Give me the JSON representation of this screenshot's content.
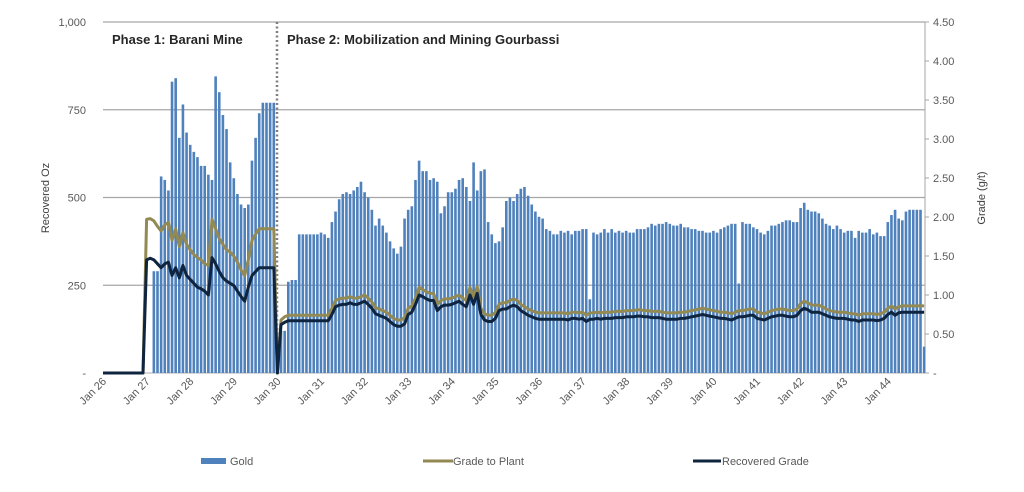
{
  "chart_data": {
    "type": "bar+line",
    "x_start": "Jan 26",
    "x_interval": "month",
    "x_tick_labels": [
      "Jan 26",
      "Jan 27",
      "Jan 28",
      "Jan 29",
      "Jan 30",
      "Jan 31",
      "Jan 32",
      "Jan 33",
      "Jan 34",
      "Jan 35",
      "Jan 36",
      "Jan 37",
      "Jan 38",
      "Jan 39",
      "Jan 40",
      "Jan 41",
      "Jan 42",
      "Jan 43",
      "Jan 44"
    ],
    "y_left": {
      "label": "Recovered  Oz",
      "range": [
        0,
        1000
      ],
      "ticks": [
        "-",
        "250",
        "500",
        "750",
        "1,000"
      ],
      "tick_values": [
        0,
        250,
        500,
        750,
        1000
      ]
    },
    "y_right": {
      "label": "Grade (g/t)",
      "range": [
        0,
        4.5
      ],
      "ticks": [
        "-",
        "0.50",
        "1.00",
        "1.50",
        "2.00",
        "2.50",
        "3.00",
        "3.50",
        "4.00",
        "4.50"
      ],
      "tick_values": [
        0,
        0.5,
        1,
        1.5,
        2,
        2.5,
        3,
        3.5,
        4,
        4.5
      ]
    },
    "grid": "horizontal (left axis)",
    "annotations": {
      "phase1": "Phase 1: Barani Mine",
      "phase2": "Phase 2: Mobilization and Mining Gourbassi",
      "divider_at": "Jan 30"
    },
    "legend": {
      "position": "bottom",
      "items": [
        "Gold",
        "Grade to Plant",
        "Recovered Grade"
      ]
    },
    "colors": {
      "gold": "#4f81bd",
      "grade_to_plant": "#938953",
      "recovered_grade": "#0f243e"
    },
    "series": [
      {
        "name": "Gold",
        "type": "bar",
        "axis": "left",
        "values": [
          0,
          0,
          0,
          0,
          0,
          0,
          0,
          0,
          0,
          0,
          0,
          0,
          0,
          0,
          290,
          290,
          560,
          550,
          520,
          830,
          840,
          670,
          765,
          685,
          650,
          630,
          615,
          590,
          590,
          565,
          550,
          845,
          800,
          735,
          695,
          600,
          555,
          510,
          480,
          470,
          480,
          605,
          670,
          740,
          770,
          770,
          770,
          770,
          0,
          120,
          120,
          260,
          265,
          265,
          395,
          395,
          395,
          395,
          395,
          395,
          400,
          395,
          385,
          430,
          460,
          495,
          510,
          515,
          510,
          520,
          530,
          545,
          515,
          500,
          465,
          420,
          440,
          420,
          400,
          375,
          355,
          340,
          360,
          440,
          465,
          475,
          550,
          605,
          575,
          575,
          550,
          555,
          545,
          455,
          475,
          515,
          515,
          525,
          550,
          555,
          530,
          490,
          600,
          520,
          575,
          580,
          430,
          395,
          370,
          375,
          415,
          490,
          500,
          490,
          510,
          525,
          530,
          505,
          480,
          460,
          445,
          440,
          410,
          405,
          395,
          395,
          405,
          400,
          405,
          395,
          405,
          405,
          410,
          410,
          210,
          400,
          395,
          400,
          410,
          400,
          410,
          400,
          405,
          400,
          405,
          400,
          400,
          410,
          410,
          410,
          415,
          425,
          420,
          425,
          425,
          430,
          425,
          420,
          420,
          425,
          415,
          415,
          410,
          410,
          405,
          405,
          400,
          400,
          405,
          400,
          410,
          415,
          420,
          425,
          425,
          255,
          430,
          425,
          425,
          415,
          410,
          400,
          395,
          405,
          420,
          420,
          425,
          430,
          435,
          435,
          430,
          430,
          470,
          485,
          465,
          460,
          460,
          455,
          440,
          425,
          420,
          410,
          420,
          410,
          400,
          405,
          405,
          385,
          405,
          400,
          400,
          410,
          395,
          400,
          390,
          390,
          430,
          450,
          465,
          440,
          435,
          460,
          465,
          465,
          465,
          465,
          75
        ]
      },
      {
        "name": "Grade to Plant",
        "type": "line",
        "axis": "right",
        "values": [
          0,
          0,
          0,
          0,
          0,
          0,
          0,
          0,
          0,
          0,
          0,
          0,
          1.97,
          1.98,
          1.95,
          1.88,
          1.82,
          1.9,
          1.93,
          1.7,
          1.85,
          1.62,
          1.8,
          1.65,
          1.58,
          1.52,
          1.48,
          1.45,
          1.4,
          1.38,
          1.97,
          1.85,
          1.72,
          1.65,
          1.58,
          1.55,
          1.5,
          1.42,
          1.32,
          1.25,
          1.45,
          1.7,
          1.78,
          1.85,
          1.85,
          1.85,
          1.85,
          1.85,
          0,
          0.68,
          0.72,
          0.74,
          0.74,
          0.74,
          0.74,
          0.74,
          0.74,
          0.74,
          0.74,
          0.74,
          0.74,
          0.74,
          0.74,
          0.83,
          0.93,
          0.95,
          0.96,
          0.96,
          0.98,
          0.96,
          0.96,
          0.98,
          1.0,
          0.96,
          0.91,
          0.84,
          0.82,
          0.8,
          0.78,
          0.74,
          0.7,
          0.68,
          0.68,
          0.71,
          0.83,
          0.86,
          0.96,
          1.1,
          1.07,
          1.04,
          1.02,
          1.02,
          0.88,
          0.93,
          0.95,
          0.95,
          0.96,
          0.98,
          1.0,
          0.96,
          0.93,
          1.1,
          0.96,
          1.11,
          0.83,
          0.76,
          0.74,
          0.74,
          0.78,
          0.88,
          0.9,
          0.9,
          0.93,
          0.95,
          0.93,
          0.88,
          0.85,
          0.82,
          0.8,
          0.78,
          0.77,
          0.77,
          0.77,
          0.77,
          0.77,
          0.77,
          0.77,
          0.77,
          0.76,
          0.78,
          0.78,
          0.77,
          0.78,
          0.74,
          0.77,
          0.77,
          0.78,
          0.77,
          0.78,
          0.78,
          0.78,
          0.79,
          0.79,
          0.79,
          0.8,
          0.8,
          0.8,
          0.81,
          0.81,
          0.8,
          0.8,
          0.79,
          0.79,
          0.79,
          0.78,
          0.77,
          0.77,
          0.77,
          0.77,
          0.78,
          0.78,
          0.79,
          0.8,
          0.81,
          0.82,
          0.83,
          0.82,
          0.81,
          0.8,
          0.79,
          0.78,
          0.78,
          0.77,
          0.76,
          0.78,
          0.8,
          0.8,
          0.81,
          0.82,
          0.82,
          0.78,
          0.77,
          0.76,
          0.78,
          0.8,
          0.81,
          0.82,
          0.82,
          0.81,
          0.8,
          0.8,
          0.82,
          0.89,
          0.92,
          0.9,
          0.87,
          0.87,
          0.87,
          0.85,
          0.82,
          0.8,
          0.79,
          0.78,
          0.78,
          0.78,
          0.77,
          0.76,
          0.76,
          0.74,
          0.76,
          0.76,
          0.76,
          0.76,
          0.75,
          0.76,
          0.78,
          0.83,
          0.86,
          0.82,
          0.85,
          0.86,
          0.86,
          0.86,
          0.86,
          0.86,
          0.86,
          0.86
        ]
      },
      {
        "name": "Recovered Grade",
        "type": "line",
        "axis": "right",
        "values": [
          0,
          0,
          0,
          0,
          0,
          0,
          0,
          0,
          0,
          0,
          0,
          0,
          1.45,
          1.47,
          1.45,
          1.4,
          1.35,
          1.4,
          1.42,
          1.25,
          1.35,
          1.22,
          1.38,
          1.25,
          1.2,
          1.15,
          1.1,
          1.08,
          1.05,
          1.0,
          1.48,
          1.4,
          1.3,
          1.22,
          1.18,
          1.15,
          1.12,
          1.05,
          0.98,
          0.92,
          1.1,
          1.25,
          1.3,
          1.35,
          1.35,
          1.35,
          1.35,
          1.35,
          0,
          0.62,
          0.65,
          0.67,
          0.67,
          0.67,
          0.67,
          0.67,
          0.67,
          0.67,
          0.67,
          0.67,
          0.67,
          0.67,
          0.67,
          0.75,
          0.85,
          0.87,
          0.88,
          0.88,
          0.9,
          0.88,
          0.88,
          0.9,
          0.92,
          0.88,
          0.83,
          0.76,
          0.74,
          0.72,
          0.7,
          0.66,
          0.62,
          0.6,
          0.6,
          0.63,
          0.75,
          0.78,
          0.88,
          1.0,
          0.98,
          0.95,
          0.93,
          0.93,
          0.8,
          0.85,
          0.87,
          0.87,
          0.88,
          0.9,
          0.92,
          0.88,
          0.85,
          1.0,
          0.88,
          1.02,
          0.75,
          0.68,
          0.66,
          0.66,
          0.7,
          0.8,
          0.82,
          0.82,
          0.85,
          0.87,
          0.85,
          0.8,
          0.77,
          0.74,
          0.72,
          0.7,
          0.69,
          0.69,
          0.69,
          0.69,
          0.69,
          0.69,
          0.69,
          0.69,
          0.68,
          0.7,
          0.7,
          0.69,
          0.7,
          0.66,
          0.69,
          0.69,
          0.7,
          0.69,
          0.7,
          0.7,
          0.7,
          0.71,
          0.71,
          0.71,
          0.72,
          0.72,
          0.72,
          0.73,
          0.73,
          0.72,
          0.72,
          0.71,
          0.71,
          0.71,
          0.7,
          0.69,
          0.69,
          0.69,
          0.69,
          0.7,
          0.7,
          0.71,
          0.72,
          0.73,
          0.74,
          0.75,
          0.74,
          0.73,
          0.72,
          0.71,
          0.7,
          0.7,
          0.69,
          0.68,
          0.7,
          0.72,
          0.72,
          0.73,
          0.74,
          0.74,
          0.7,
          0.69,
          0.68,
          0.7,
          0.72,
          0.73,
          0.74,
          0.74,
          0.73,
          0.72,
          0.72,
          0.74,
          0.8,
          0.83,
          0.81,
          0.78,
          0.78,
          0.78,
          0.76,
          0.74,
          0.72,
          0.71,
          0.7,
          0.7,
          0.7,
          0.69,
          0.68,
          0.68,
          0.66,
          0.68,
          0.68,
          0.68,
          0.68,
          0.67,
          0.68,
          0.7,
          0.75,
          0.78,
          0.74,
          0.77,
          0.78,
          0.78,
          0.78,
          0.78,
          0.78,
          0.78,
          0.78
        ]
      }
    ]
  }
}
